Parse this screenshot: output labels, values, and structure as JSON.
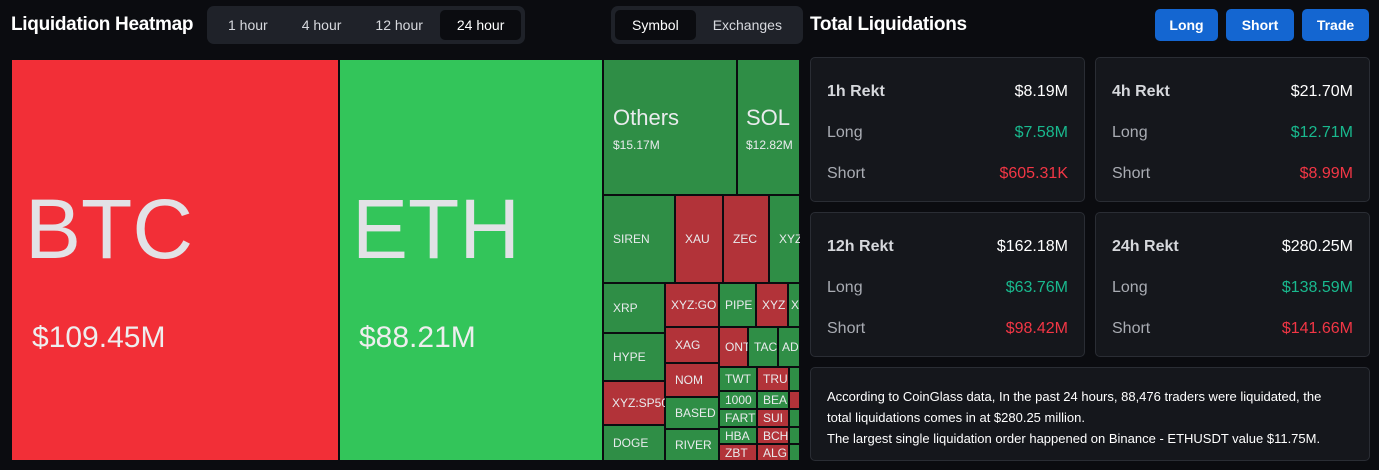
{
  "heatmap": {
    "title": "Liquidation Heatmap",
    "ranges": [
      "1 hour",
      "4 hour",
      "12 hour",
      "24 hour"
    ],
    "views": [
      "Symbol",
      "Exchanges"
    ],
    "tiles": {
      "btc": {
        "symbol": "BTC",
        "value": "$109.45M"
      },
      "eth": {
        "symbol": "ETH",
        "value": "$88.21M"
      },
      "others": {
        "symbol": "Others",
        "value": "$15.17M"
      },
      "sol": {
        "symbol": "SOL",
        "value": "$12.82M"
      },
      "siren": "SIREN",
      "xau": "XAU",
      "zec": "ZEC",
      "xyz": "XYZ",
      "xrp": "XRP",
      "xyzgo": "XYZ:GO",
      "pipe": "PIPE",
      "xyz2": "XYZ",
      "x": "X",
      "hype": "HYPE",
      "xag": "XAG",
      "ont": "ONT",
      "tac": "TAC",
      "ad": "AD",
      "xyzsp": "XYZ:SP50",
      "nom": "NOM",
      "twt": "TWT",
      "tru": "TRU",
      "k1000": "1000",
      "bea": "BEA",
      "based": "BASED",
      "fart": "FART",
      "sui": "SUI",
      "doge": "DOGE",
      "river": "RIVER",
      "hba": "HBA",
      "bch": "BCH",
      "zbt": "ZBT",
      "alg": "ALG"
    }
  },
  "totals": {
    "title": "Total Liquidations",
    "buttons": {
      "long": "Long",
      "short": "Short",
      "trade": "Trade"
    },
    "labels": {
      "long": "Long",
      "short": "Short"
    },
    "cards": {
      "h1": {
        "title": "1h Rekt",
        "total": "$8.19M",
        "long": "$7.58M",
        "short": "$605.31K"
      },
      "h4": {
        "title": "4h Rekt",
        "total": "$21.70M",
        "long": "$12.71M",
        "short": "$8.99M"
      },
      "h12": {
        "title": "12h Rekt",
        "total": "$162.18M",
        "long": "$63.76M",
        "short": "$98.42M"
      },
      "h24": {
        "title": "24h Rekt",
        "total": "$280.25M",
        "long": "$138.59M",
        "short": "$141.66M"
      }
    },
    "summary_line1": "According to CoinGlass data, In the past 24 hours, 88,476 traders were liquidated, the",
    "summary_line2": "total liquidations comes in at $280.25 million.",
    "summary_line3": "The largest single liquidation order happened on Binance - ETHUSDT value $11.75M."
  },
  "colors": {
    "long_red": "#f22f37",
    "short_green": "#33c55a",
    "accent_blue": "#1466d1",
    "positive": "#19b98e",
    "negative": "#f23645"
  }
}
